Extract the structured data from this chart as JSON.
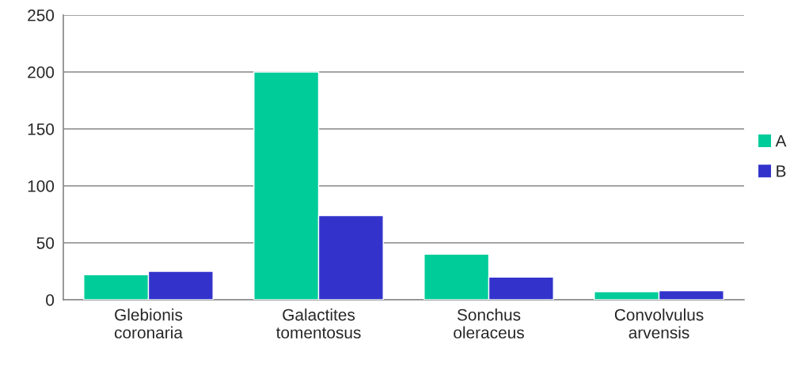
{
  "chart_data": {
    "type": "bar",
    "categories": [
      "Glebionis\ncoronaria",
      "Galactites\ntomentosus",
      "Sonchus\noleraceus",
      "Convolvulus\narvensis"
    ],
    "series": [
      {
        "name": "A",
        "color": "#00cc99",
        "values": [
          22,
          200,
          40,
          7
        ]
      },
      {
        "name": "B",
        "color": "#3333cc",
        "values": [
          25,
          74,
          20,
          8
        ]
      }
    ],
    "ylim": [
      0,
      250
    ],
    "yticks": [
      0,
      50,
      100,
      150,
      200,
      250
    ],
    "grid": "y",
    "legend": "right"
  }
}
